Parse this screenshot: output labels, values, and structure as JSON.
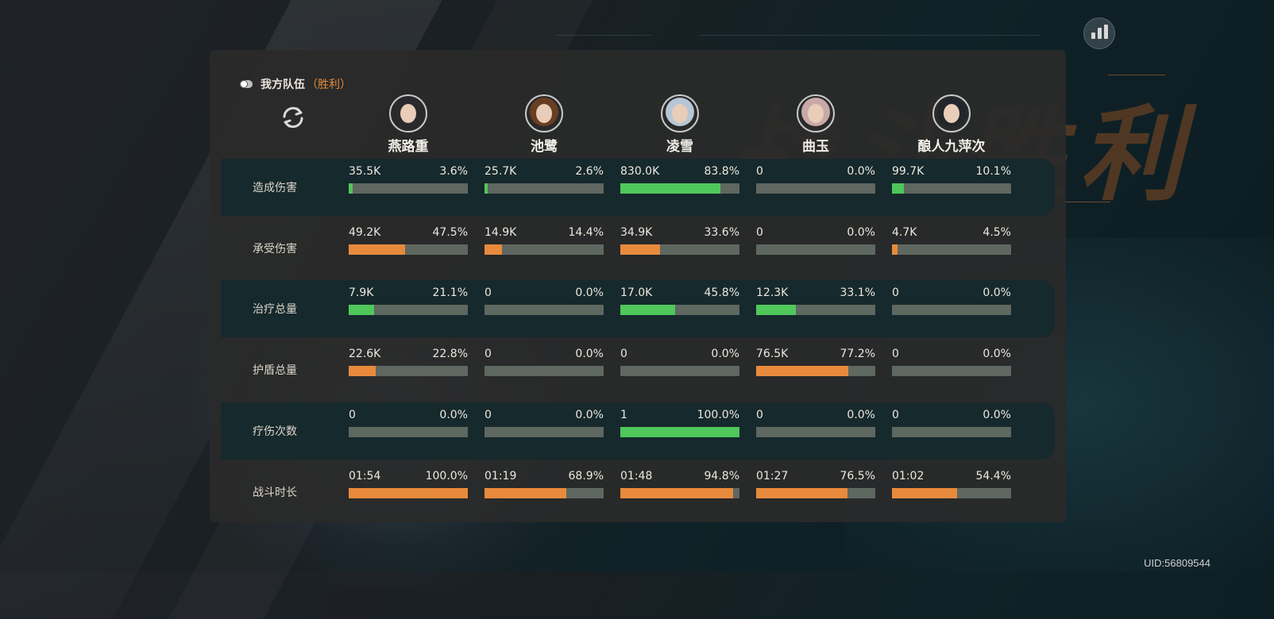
{
  "team": {
    "label": "我方队伍",
    "result": "（胜利）"
  },
  "uid": "UID:56809544",
  "players": [
    {
      "name": "燕路重",
      "hair": "#2a2a2e"
    },
    {
      "name": "池鹭",
      "hair": "#6a3e22"
    },
    {
      "name": "凌雪",
      "hair": "#b7c6d6"
    },
    {
      "name": "曲玉",
      "hair": "#c9a9a8"
    },
    {
      "name": "酿人九萍次",
      "hair": "#23252c"
    }
  ],
  "rows": [
    {
      "label": "造成伤害",
      "color": "green",
      "cells": [
        {
          "value": "35.5K",
          "percent": "3.6%",
          "fill": 3.6
        },
        {
          "value": "25.7K",
          "percent": "2.6%",
          "fill": 2.6
        },
        {
          "value": "830.0K",
          "percent": "83.8%",
          "fill": 83.8
        },
        {
          "value": "0",
          "percent": "0.0%",
          "fill": 0
        },
        {
          "value": "99.7K",
          "percent": "10.1%",
          "fill": 10.1
        }
      ]
    },
    {
      "label": "承受伤害",
      "color": "orange",
      "cells": [
        {
          "value": "49.2K",
          "percent": "47.5%",
          "fill": 47.5
        },
        {
          "value": "14.9K",
          "percent": "14.4%",
          "fill": 14.4
        },
        {
          "value": "34.9K",
          "percent": "33.6%",
          "fill": 33.6
        },
        {
          "value": "0",
          "percent": "0.0%",
          "fill": 0
        },
        {
          "value": "4.7K",
          "percent": "4.5%",
          "fill": 4.5
        }
      ]
    },
    {
      "label": "治疗总量",
      "color": "green",
      "cells": [
        {
          "value": "7.9K",
          "percent": "21.1%",
          "fill": 21.1
        },
        {
          "value": "0",
          "percent": "0.0%",
          "fill": 0
        },
        {
          "value": "17.0K",
          "percent": "45.8%",
          "fill": 45.8
        },
        {
          "value": "12.3K",
          "percent": "33.1%",
          "fill": 33.1
        },
        {
          "value": "0",
          "percent": "0.0%",
          "fill": 0
        }
      ]
    },
    {
      "label": "护盾总量",
      "color": "orange",
      "cells": [
        {
          "value": "22.6K",
          "percent": "22.8%",
          "fill": 22.8
        },
        {
          "value": "0",
          "percent": "0.0%",
          "fill": 0
        },
        {
          "value": "0",
          "percent": "0.0%",
          "fill": 0
        },
        {
          "value": "76.5K",
          "percent": "77.2%",
          "fill": 77.2
        },
        {
          "value": "0",
          "percent": "0.0%",
          "fill": 0
        }
      ]
    },
    {
      "label": "疗伤次数",
      "color": "green",
      "cells": [
        {
          "value": "0",
          "percent": "0.0%",
          "fill": 0
        },
        {
          "value": "0",
          "percent": "0.0%",
          "fill": 0
        },
        {
          "value": "1",
          "percent": "100.0%",
          "fill": 100
        },
        {
          "value": "0",
          "percent": "0.0%",
          "fill": 0
        },
        {
          "value": "0",
          "percent": "0.0%",
          "fill": 0
        }
      ]
    },
    {
      "label": "战斗时长",
      "color": "orange",
      "cells": [
        {
          "value": "01:54",
          "percent": "100.0%",
          "fill": 100
        },
        {
          "value": "01:19",
          "percent": "68.9%",
          "fill": 68.9
        },
        {
          "value": "01:48",
          "percent": "94.8%",
          "fill": 94.8
        },
        {
          "value": "01:27",
          "percent": "76.5%",
          "fill": 76.5
        },
        {
          "value": "01:02",
          "percent": "54.4%",
          "fill": 54.4
        }
      ]
    }
  ]
}
